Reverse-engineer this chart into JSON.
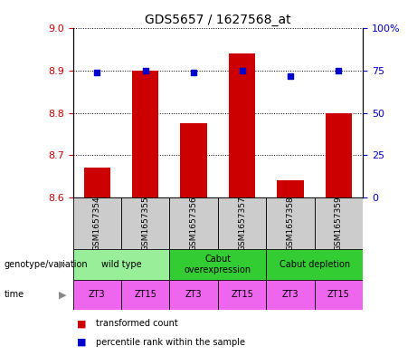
{
  "title": "GDS5657 / 1627568_at",
  "samples": [
    "GSM1657354",
    "GSM1657355",
    "GSM1657356",
    "GSM1657357",
    "GSM1657358",
    "GSM1657359"
  ],
  "bar_values": [
    8.67,
    8.9,
    8.775,
    8.94,
    8.64,
    8.8
  ],
  "blue_values": [
    74,
    75,
    74,
    75,
    72,
    75
  ],
  "ylim_left": [
    8.6,
    9.0
  ],
  "ylim_right": [
    0,
    100
  ],
  "yticks_left": [
    8.6,
    8.7,
    8.8,
    8.9,
    9.0
  ],
  "yticks_right": [
    0,
    25,
    50,
    75,
    100
  ],
  "bar_color": "#cc0000",
  "blue_color": "#0000cc",
  "bar_width": 0.55,
  "geno_groups": [
    {
      "label": "wild type",
      "start": 0,
      "end": 2,
      "color": "#99ee99"
    },
    {
      "label": "Cabut\noverexpression",
      "start": 2,
      "end": 4,
      "color": "#33cc33"
    },
    {
      "label": "Cabut depletion",
      "start": 4,
      "end": 6,
      "color": "#33cc33"
    }
  ],
  "times": [
    "ZT3",
    "ZT15",
    "ZT3",
    "ZT15",
    "ZT3",
    "ZT15"
  ],
  "time_color": "#ee66ee",
  "sample_bg": "#cccccc",
  "genotype_label": "genotype/variation",
  "time_label": "time",
  "legend_bar_label": "transformed count",
  "legend_blue_label": "percentile rank within the sample",
  "n": 6
}
